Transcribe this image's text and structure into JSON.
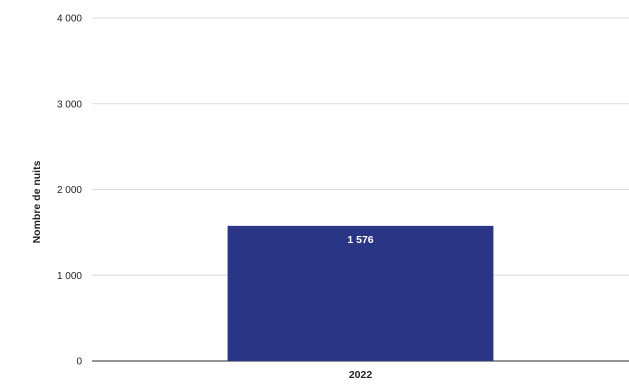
{
  "chart_data": {
    "type": "bar",
    "categories": [
      "2022"
    ],
    "series": [
      {
        "values": [
          1576
        ],
        "data_labels": [
          "1 576"
        ]
      }
    ],
    "ylabel": "Nombre de nuits",
    "xlabel": "",
    "ylim": [
      0,
      4000
    ],
    "yticks": [
      0,
      1000,
      2000,
      3000,
      4000
    ],
    "ytick_labels": [
      "0",
      "1 000",
      "2 000",
      "3 000",
      "4 000"
    ],
    "grid": true,
    "legend": "none",
    "bar_color": "#2b3585",
    "grid_color": "#dcdcdc",
    "axis_color": "#555555",
    "text_color": "#222222",
    "label_color": "#ffffff"
  }
}
